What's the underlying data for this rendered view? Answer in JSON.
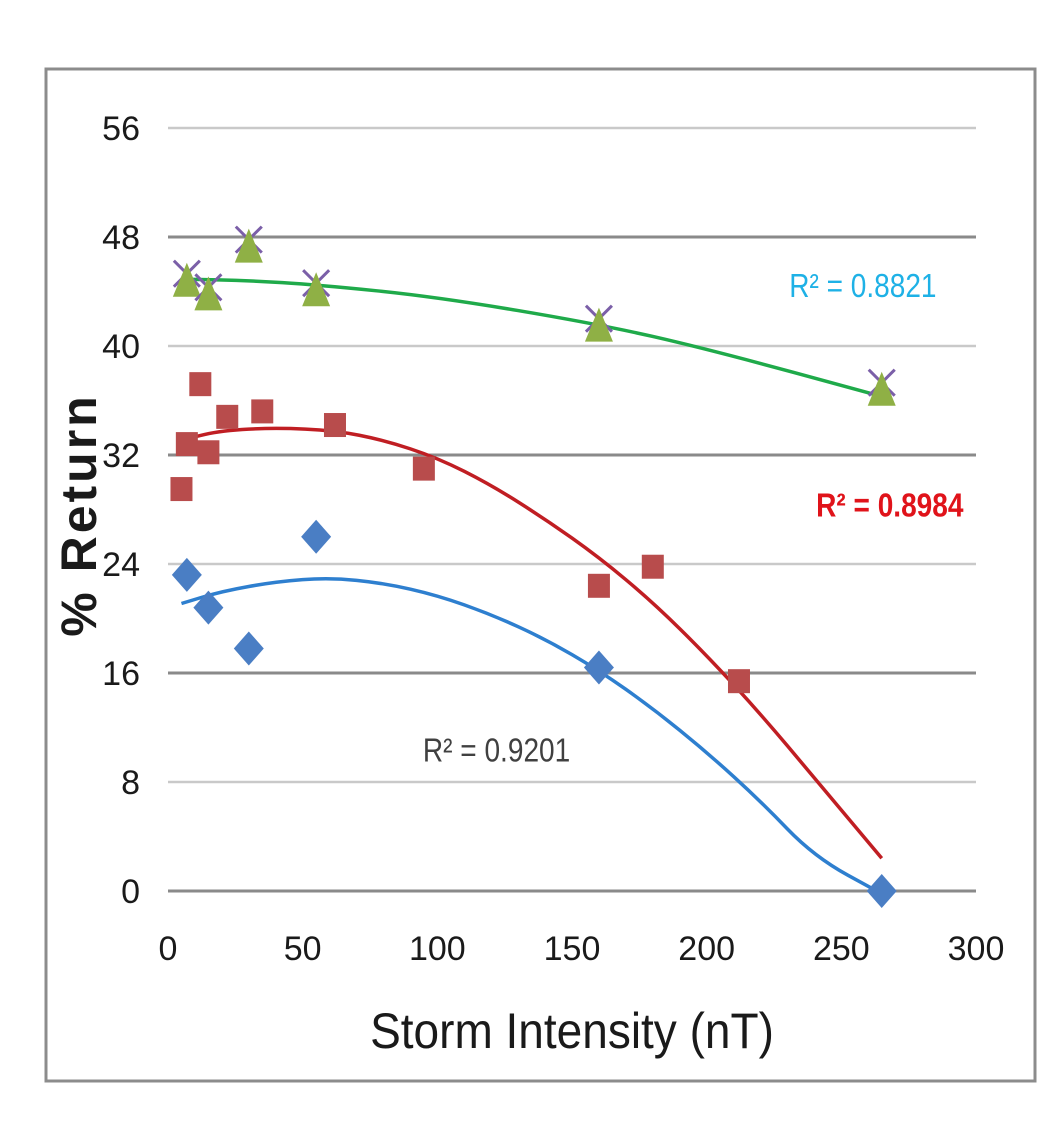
{
  "chart_data": {
    "type": "scatter",
    "title": "",
    "xlabel": "Storm Intensity (nT)",
    "ylabel": "% Return",
    "xlim": [
      0,
      300
    ],
    "ylim": [
      0,
      56
    ],
    "xticks": [
      "0",
      "50",
      "100",
      "150",
      "200",
      "250",
      "300"
    ],
    "yticks": [
      "0",
      "8",
      "16",
      "24",
      "32",
      "40",
      "48",
      "56"
    ],
    "grid": true,
    "legend": "none",
    "series": [
      {
        "marker": "triangle",
        "color": "#8fb045",
        "star_color": "#7b5fa8",
        "line_color": "#1faa4a",
        "points": [
          [
            7,
            44.5
          ],
          [
            15,
            43.5
          ],
          [
            30,
            47
          ],
          [
            55,
            43.8
          ],
          [
            160,
            41.2
          ],
          [
            265,
            36.5
          ]
        ],
        "trend": [
          [
            7,
            44.9
          ],
          [
            30,
            44.8
          ],
          [
            55,
            44.5
          ],
          [
            100,
            43.6
          ],
          [
            160,
            41.6
          ],
          [
            200,
            39.8
          ],
          [
            265,
            36.3
          ]
        ],
        "r2_label": "R² = 0.8821",
        "r2_color": "#1eb1e6",
        "r2_pos": [
          258,
          43.6
        ]
      },
      {
        "marker": "square",
        "color": "#b84c4c",
        "line_color": "#c01e23",
        "points": [
          [
            5,
            29.5
          ],
          [
            7,
            32.8
          ],
          [
            12,
            37.2
          ],
          [
            15,
            32.2
          ],
          [
            22,
            34.8
          ],
          [
            35,
            35.2
          ],
          [
            62,
            34.2
          ],
          [
            95,
            31
          ],
          [
            160,
            22.4
          ],
          [
            180,
            23.8
          ],
          [
            212,
            15.4
          ]
        ],
        "trend": [
          [
            7,
            33.2
          ],
          [
            20,
            33.8
          ],
          [
            40,
            34
          ],
          [
            62,
            33.8
          ],
          [
            80,
            33.1
          ],
          [
            100,
            31.8
          ],
          [
            120,
            29.8
          ],
          [
            140,
            27.3
          ],
          [
            160,
            24.5
          ],
          [
            180,
            21.2
          ],
          [
            200,
            17.3
          ],
          [
            220,
            13
          ],
          [
            240,
            8.3
          ],
          [
            265,
            2.4
          ]
        ],
        "r2_label": "R² = 0.8984",
        "r2_color": "#e0131a",
        "r2_pos": [
          268,
          27.5
        ]
      },
      {
        "marker": "diamond",
        "color": "#4a7ec4",
        "line_color": "#2e7fcf",
        "points": [
          [
            7,
            23.2
          ],
          [
            15,
            20.8
          ],
          [
            30,
            17.8
          ],
          [
            55,
            26
          ],
          [
            160,
            16.4
          ],
          [
            265,
            0
          ]
        ],
        "trend": [
          [
            5,
            21.1
          ],
          [
            20,
            22
          ],
          [
            40,
            22.7
          ],
          [
            60,
            23
          ],
          [
            80,
            22.6
          ],
          [
            100,
            21.7
          ],
          [
            120,
            20.3
          ],
          [
            140,
            18.5
          ],
          [
            160,
            16.2
          ],
          [
            180,
            13.4
          ],
          [
            200,
            10.2
          ],
          [
            220,
            6.6
          ],
          [
            240,
            2.5
          ],
          [
            265,
            -0.2
          ]
        ],
        "r2_label": "R² = 0.9201",
        "r2_color": "#404040",
        "r2_pos": [
          122,
          9.5
        ]
      }
    ]
  }
}
